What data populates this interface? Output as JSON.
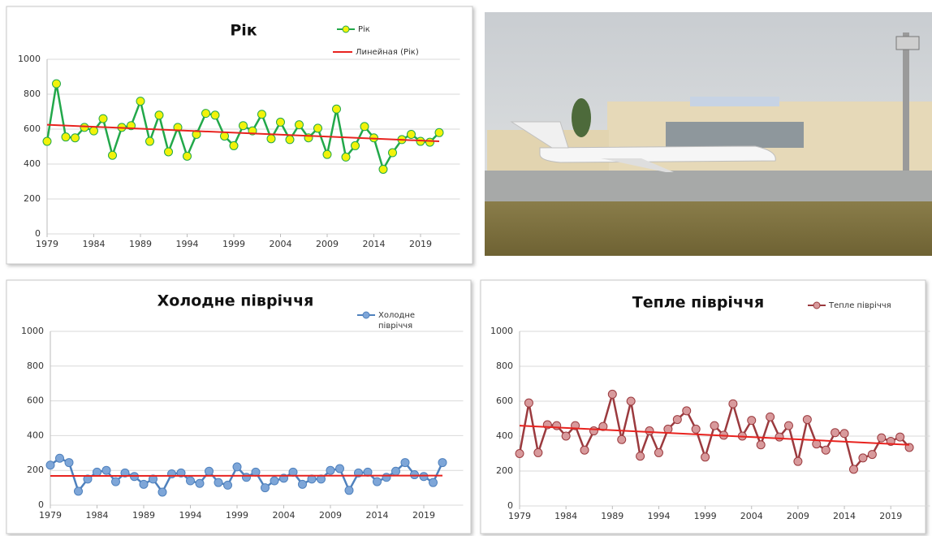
{
  "chart_data": [
    {
      "type": "line",
      "title": "Рік",
      "x": [
        1979,
        1980,
        1981,
        1982,
        1983,
        1984,
        1985,
        1986,
        1987,
        1988,
        1989,
        1990,
        1991,
        1992,
        1993,
        1994,
        1995,
        1996,
        1997,
        1998,
        1999,
        2000,
        2001,
        2002,
        2003,
        2004,
        2005,
        2006,
        2007,
        2008,
        2009,
        2010,
        2011,
        2012,
        2013,
        2014,
        2015,
        2016,
        2017,
        2018,
        2019,
        2020,
        2021
      ],
      "xlim": [
        1979,
        2022
      ],
      "xticks": [
        1979,
        1984,
        1989,
        1994,
        1999,
        2004,
        2009,
        2014,
        2019
      ],
      "ylim": [
        0,
        1000
      ],
      "yticks": [
        0,
        200,
        400,
        600,
        800,
        1000
      ],
      "grid": true,
      "series": [
        {
          "name": "Рік",
          "color": "#22a84a",
          "marker_color": "#f2f20a",
          "values": [
            530,
            860,
            555,
            550,
            610,
            590,
            660,
            450,
            610,
            620,
            760,
            530,
            680,
            470,
            610,
            445,
            570,
            690,
            680,
            560,
            505,
            620,
            590,
            685,
            545,
            640,
            540,
            625,
            550,
            605,
            455,
            715,
            440,
            505,
            615,
            550,
            370,
            465,
            540,
            570,
            530,
            525,
            580
          ]
        }
      ],
      "trendline": {
        "name": "Линейная (Рік)",
        "color": "#e8231f",
        "start": 625,
        "end": 530
      }
    },
    {
      "type": "line",
      "title": "Холодне півріччя",
      "x": [
        1979,
        1980,
        1981,
        1982,
        1983,
        1984,
        1985,
        1986,
        1987,
        1988,
        1989,
        1990,
        1991,
        1992,
        1993,
        1994,
        1995,
        1996,
        1997,
        1998,
        1999,
        2000,
        2001,
        2002,
        2003,
        2004,
        2005,
        2006,
        2007,
        2008,
        2009,
        2010,
        2011,
        2012,
        2013,
        2014,
        2015,
        2016,
        2017,
        2018,
        2019,
        2020,
        2021
      ],
      "xlim": [
        1979,
        2022
      ],
      "xticks": [
        1979,
        1984,
        1989,
        1994,
        1999,
        2004,
        2009,
        2014,
        2019
      ],
      "ylim": [
        0,
        1000
      ],
      "yticks": [
        0,
        200,
        400,
        600,
        800,
        1000
      ],
      "grid": true,
      "series": [
        {
          "name": "Холодне півріччя",
          "color": "#4f81bd",
          "marker_color": "#7ea6d8",
          "values": [
            230,
            270,
            245,
            80,
            150,
            190,
            200,
            135,
            185,
            165,
            120,
            150,
            75,
            180,
            185,
            140,
            125,
            195,
            130,
            115,
            220,
            160,
            190,
            100,
            140,
            155,
            190,
            120,
            150,
            150,
            200,
            210,
            85,
            185,
            190,
            135,
            160,
            195,
            245,
            175,
            165,
            130,
            245
          ]
        }
      ],
      "trendline": {
        "color": "#e8231f",
        "start": 168,
        "end": 170
      }
    },
    {
      "type": "line",
      "title": "Тепле півріччя",
      "x": [
        1979,
        1980,
        1981,
        1982,
        1983,
        1984,
        1985,
        1986,
        1987,
        1988,
        1989,
        1990,
        1991,
        1992,
        1993,
        1994,
        1995,
        1996,
        1997,
        1998,
        1999,
        2000,
        2001,
        2002,
        2003,
        2004,
        2005,
        2006,
        2007,
        2008,
        2009,
        2010,
        2011,
        2012,
        2013,
        2014,
        2015,
        2016,
        2017,
        2018,
        2019,
        2020,
        2021
      ],
      "xlim": [
        1979,
        2022
      ],
      "xticks": [
        1979,
        1984,
        1989,
        1994,
        1999,
        2004,
        2009,
        2014,
        2019
      ],
      "ylim": [
        0,
        1000
      ],
      "yticks": [
        0,
        200,
        400,
        600,
        800,
        1000
      ],
      "grid": true,
      "series": [
        {
          "name": "Тепле півріччя",
          "color": "#9b3a3e",
          "marker_color": "#d89a9c",
          "values": [
            300,
            590,
            305,
            465,
            460,
            400,
            460,
            320,
            430,
            455,
            640,
            380,
            600,
            285,
            430,
            305,
            440,
            495,
            545,
            440,
            280,
            460,
            405,
            585,
            400,
            490,
            350,
            510,
            395,
            460,
            255,
            495,
            355,
            320,
            420,
            415,
            210,
            275,
            295,
            390,
            370,
            395,
            335
          ]
        }
      ],
      "trendline": {
        "color": "#e8231f",
        "start": 460,
        "end": 350
      }
    }
  ]
}
